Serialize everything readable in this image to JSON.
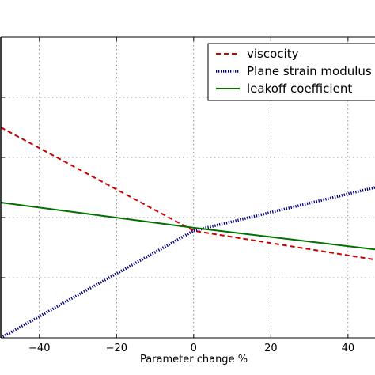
{
  "chart_data": {
    "type": "line",
    "title": "",
    "xlabel": "Parameter change %",
    "ylabel": "",
    "xlim": [
      -50,
      47
    ],
    "ylim": [
      0,
      5
    ],
    "x_ticks": [
      -40,
      -20,
      0,
      20,
      40
    ],
    "x_tick_labels": [
      "−40",
      "−20",
      "0",
      "20",
      "40"
    ],
    "y_ticks": [
      1,
      2,
      3,
      4
    ],
    "y_tick_labels": [
      "",
      "",
      "",
      ""
    ],
    "grid": true,
    "legend_position": "top-right",
    "series": [
      {
        "name": "viscocity",
        "color": "#cc0000",
        "style": "dashed",
        "x": [
          -50,
          0,
          47
        ],
        "y": [
          3.5,
          1.78,
          1.3
        ]
      },
      {
        "name": "Plane strain modulus",
        "color": "#000080",
        "style": "dotted",
        "x": [
          -50,
          0,
          47
        ],
        "y": [
          0.0,
          1.78,
          2.5
        ]
      },
      {
        "name": "leakoff coefficient",
        "color": "#007000",
        "style": "solid",
        "x": [
          -50,
          0,
          47
        ],
        "y": [
          2.25,
          1.83,
          1.47
        ]
      }
    ]
  }
}
